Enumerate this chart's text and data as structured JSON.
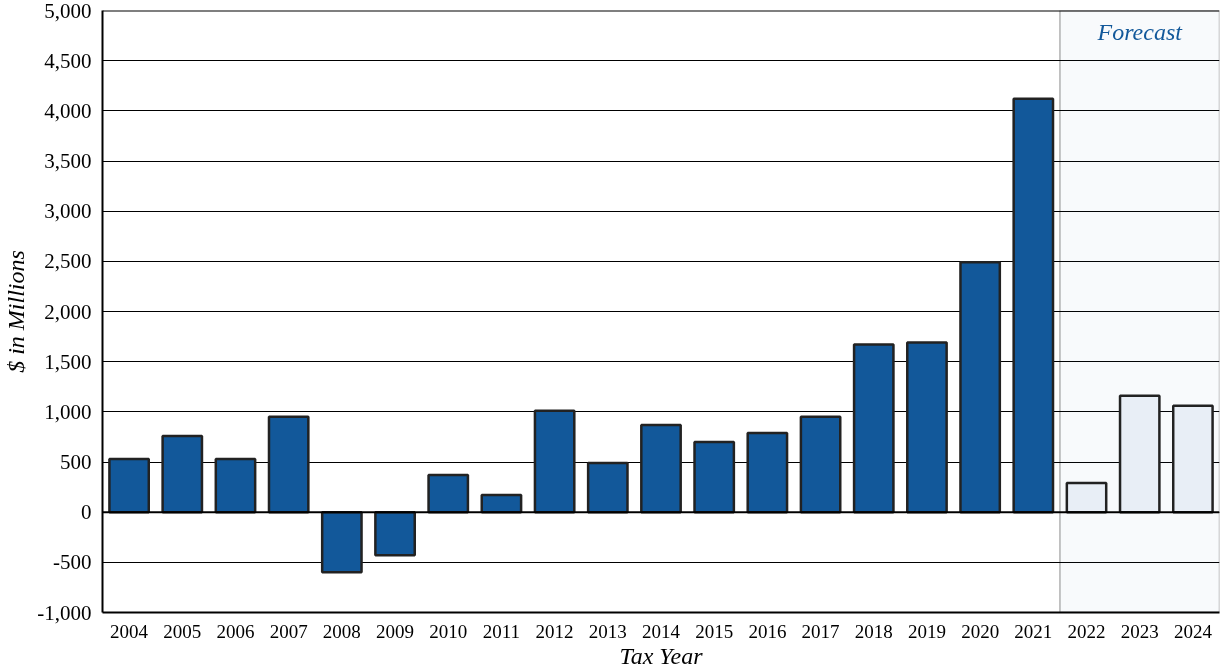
{
  "chart_data": {
    "type": "bar",
    "xlabel": "Tax Year",
    "ylabel": "$ in Millions",
    "categories": [
      "2004",
      "2005",
      "2006",
      "2007",
      "2008",
      "2009",
      "2010",
      "2011",
      "2012",
      "2013",
      "2014",
      "2015",
      "2016",
      "2017",
      "2018",
      "2019",
      "2020",
      "2021",
      "2022",
      "2023",
      "2024"
    ],
    "values": [
      530,
      760,
      530,
      950,
      -600,
      -430,
      370,
      170,
      1010,
      490,
      870,
      700,
      790,
      950,
      1670,
      1690,
      2490,
      4120,
      290,
      1160,
      1060
    ],
    "colors": [
      "#12589a",
      "#12589a",
      "#12589a",
      "#12589a",
      "#12589a",
      "#12589a",
      "#12589a",
      "#12589a",
      "#12589a",
      "#12589a",
      "#12589a",
      "#12589a",
      "#12589a",
      "#12589a",
      "#12589a",
      "#12589a",
      "#12589a",
      "#12589a",
      "#e8eef6",
      "#e8eef6",
      "#e8eef6"
    ],
    "ylim": [
      -1000,
      5000
    ],
    "yticks": [
      {
        "value": -1000,
        "label": "-1,000"
      },
      -500,
      0,
      500,
      {
        "value": 1000,
        "label": "1,000"
      },
      {
        "value": 1500,
        "label": "1,500"
      },
      {
        "value": 2000,
        "label": "2,000"
      },
      {
        "value": 2500,
        "label": "2,500"
      },
      {
        "value": 3000,
        "label": "3,000"
      },
      {
        "value": 3500,
        "label": "3,500"
      },
      {
        "value": 4000,
        "label": "4,000"
      },
      {
        "value": 4500,
        "label": "4,500"
      },
      {
        "value": 5000,
        "label": "5,000"
      }
    ],
    "grid": "y",
    "bands": [
      {
        "axis": "x",
        "from": "2022",
        "to": "2024",
        "label": "Forecast",
        "color": "#12589a"
      }
    ]
  }
}
